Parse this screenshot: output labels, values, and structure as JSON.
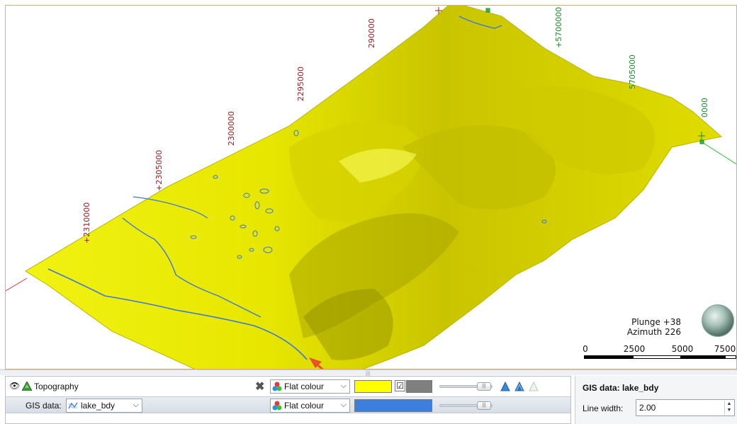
{
  "scene": {
    "coord_labels_red": [
      "+2310000",
      "+2305000",
      "2300000",
      "2295000",
      "290000"
    ],
    "coord_labels_green": [
      "+5700000",
      "5705000",
      "0000"
    ],
    "plunge": "Plunge +38",
    "azimuth": "Azimuth 226",
    "scale_labels": [
      "0",
      "2500",
      "5000",
      "7500"
    ],
    "colors": {
      "surface": "#e6e600",
      "lake": "#3a78d6",
      "axis_red": "#d23b3b",
      "axis_green": "#2fbf3c",
      "arrow": "#e8512a"
    }
  },
  "layers": {
    "topography": {
      "label": "Topography",
      "colour_mode": "Flat colour",
      "colour": "#ffff00",
      "edge_colour": "#7f7f7f",
      "show_edges": true
    },
    "gis": {
      "prefix": "GIS data:",
      "selected": "lake_bdy",
      "colour_mode": "Flat colour",
      "colour": "#3d7fdf"
    }
  },
  "properties": {
    "title": "GIS data: lake_bdy",
    "line_width_label": "Line width:",
    "line_width_value": "2.00"
  }
}
